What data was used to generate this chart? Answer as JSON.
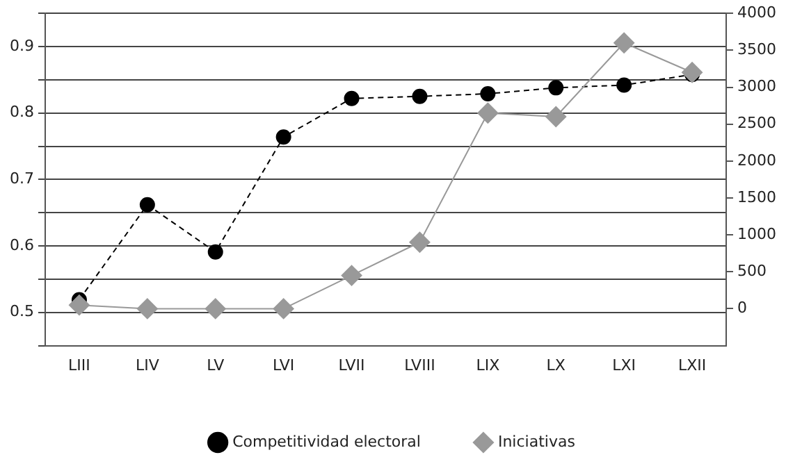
{
  "chart_data": {
    "type": "line",
    "categories": [
      "LIII",
      "LIV",
      "LV",
      "LVI",
      "LVII",
      "LVIII",
      "LIX",
      "LX",
      "LXI",
      "LXII"
    ],
    "series": [
      {
        "name": "Competitividad electoral",
        "color": "#000000",
        "marker": "circle",
        "line_style": "dashed",
        "values": [
          0.519,
          0.662,
          0.591,
          0.764,
          0.822,
          0.825,
          0.829,
          0.838,
          0.842,
          0.858
        ]
      },
      {
        "name": "Iniciativas",
        "color": "#999999",
        "marker": "diamond",
        "line_style": "solid",
        "axis": "y2",
        "values": [
          50,
          0,
          0,
          0,
          450,
          900,
          2650,
          2600,
          3600,
          3200
        ]
      }
    ],
    "ylim": [
      0.45,
      0.95
    ],
    "yticks": [
      {
        "value": 0.45,
        "label": null
      },
      0.5,
      {
        "value": 0.55,
        "label": null
      },
      0.6,
      {
        "value": 0.65,
        "label": null
      },
      0.7,
      {
        "value": 0.75,
        "label": null
      },
      0.8,
      {
        "value": 0.85,
        "label": null
      },
      0.9,
      {
        "value": 0.95,
        "label": null
      }
    ],
    "y2lim": [
      -500,
      4000
    ],
    "y2ticks": [
      0,
      500,
      1000,
      1500,
      2000,
      2500,
      3000,
      3500,
      4000
    ],
    "grid": "y",
    "legend": "bottom"
  }
}
